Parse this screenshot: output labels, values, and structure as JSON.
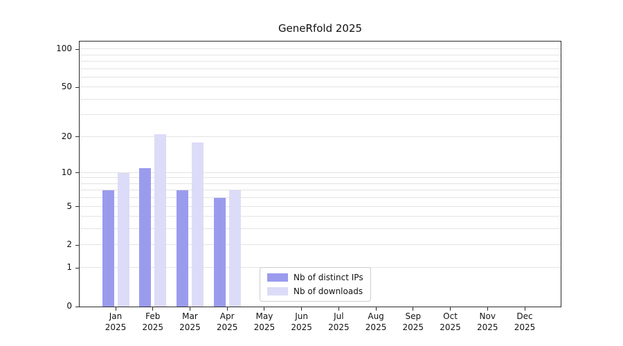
{
  "title": "GeneRfold 2025",
  "chart_data": {
    "type": "bar",
    "title": "GeneRfold 2025",
    "categories": [
      "Jan\n2025",
      "Feb\n2025",
      "Mar\n2025",
      "Apr\n2025",
      "May\n2025",
      "Jun\n2025",
      "Jul\n2025",
      "Aug\n2025",
      "Sep\n2025",
      "Oct\n2025",
      "Nov\n2025",
      "Dec\n2025"
    ],
    "series": [
      {
        "name": "Nb of distinct IPs",
        "color": "#9b9bee",
        "values": [
          7,
          11,
          7,
          6,
          0,
          0,
          0,
          0,
          0,
          0,
          0,
          0
        ]
      },
      {
        "name": "Nb of downloads",
        "color": "#dcdcf8",
        "values": [
          10,
          21,
          18,
          7,
          0,
          0,
          0,
          0,
          0,
          0,
          0,
          0
        ]
      }
    ],
    "y_ticks": [
      0,
      1,
      2,
      5,
      10,
      20,
      50,
      100
    ],
    "minor_gridlines": [
      1,
      2,
      3,
      4,
      5,
      6,
      7,
      8,
      9,
      10,
      20,
      30,
      40,
      50,
      60,
      70,
      80,
      90,
      100
    ],
    "scale": "log10(1+v)",
    "ylim": [
      0,
      115
    ],
    "xlabel": "",
    "ylabel": "",
    "grid": true,
    "legend_position": "bottom-center"
  }
}
